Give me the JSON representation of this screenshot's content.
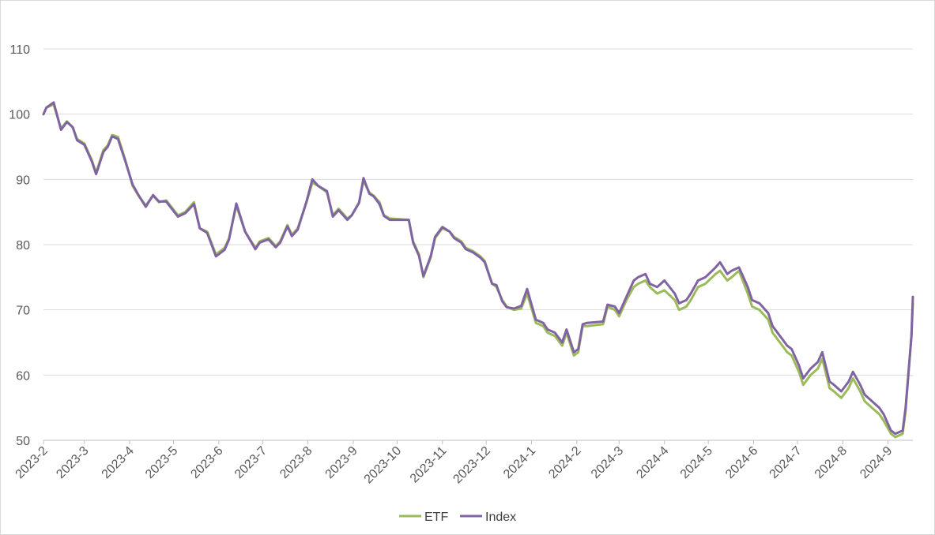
{
  "chart_data": {
    "type": "line",
    "title": "",
    "xlabel": "",
    "ylabel": "",
    "ylim": [
      50,
      110
    ],
    "yticks": [
      50,
      60,
      70,
      80,
      90,
      100,
      110
    ],
    "xlim": [
      "2023-02-01",
      "2024-09-18"
    ],
    "x_tick_labels": [
      "2023-2",
      "2023-3",
      "2023-4",
      "2023-5",
      "2023-6",
      "2023-7",
      "2023-8",
      "2023-9",
      "2023-10",
      "2023-11",
      "2023-12",
      "2024-1",
      "2024-2",
      "2024-3",
      "2024-4",
      "2024-5",
      "2024-6",
      "2024-7",
      "2024-8",
      "2024-9"
    ],
    "grid": "horizontal",
    "legend_position": "bottom",
    "colors": {
      "ETF": "#9bbb59",
      "Index": "#8064a2",
      "grid": "#d9d9d9",
      "axis": "#bfbfbf",
      "text": "#595959"
    },
    "series": [
      {
        "name": "ETF",
        "x": [
          "2023-02-01",
          "2023-02-03",
          "2023-02-08",
          "2023-02-13",
          "2023-02-17",
          "2023-02-21",
          "2023-02-24",
          "2023-03-01",
          "2023-03-06",
          "2023-03-09",
          "2023-03-14",
          "2023-03-17",
          "2023-03-20",
          "2023-03-24",
          "2023-03-29",
          "2023-04-03",
          "2023-04-07",
          "2023-04-12",
          "2023-04-17",
          "2023-04-21",
          "2023-04-26",
          "2023-05-04",
          "2023-05-09",
          "2023-05-15",
          "2023-05-19",
          "2023-05-24",
          "2023-05-30",
          "2023-06-05",
          "2023-06-08",
          "2023-06-13",
          "2023-06-19",
          "2023-06-26",
          "2023-06-29",
          "2023-07-05",
          "2023-07-10",
          "2023-07-13",
          "2023-07-18",
          "2023-07-21",
          "2023-07-25",
          "2023-07-31",
          "2023-08-04",
          "2023-08-08",
          "2023-08-14",
          "2023-08-18",
          "2023-08-22",
          "2023-08-28",
          "2023-08-31",
          "2023-09-05",
          "2023-09-08",
          "2023-09-12",
          "2023-09-15",
          "2023-09-19",
          "2023-09-22",
          "2023-09-26",
          "2023-10-09",
          "2023-10-12",
          "2023-10-16",
          "2023-10-19",
          "2023-10-24",
          "2023-10-27",
          "2023-11-01",
          "2023-11-06",
          "2023-11-09",
          "2023-11-14",
          "2023-11-17",
          "2023-11-22",
          "2023-11-27",
          "2023-11-30",
          "2023-12-05",
          "2023-12-08",
          "2023-12-12",
          "2023-12-15",
          "2023-12-20",
          "2023-12-25",
          "2023-12-29",
          "2024-01-04",
          "2024-01-09",
          "2024-01-12",
          "2024-01-17",
          "2024-01-22",
          "2024-01-25",
          "2024-01-30",
          "2024-02-02",
          "2024-02-05",
          "2024-02-08",
          "2024-02-19",
          "2024-02-22",
          "2024-02-27",
          "2024-03-01",
          "2024-03-06",
          "2024-03-11",
          "2024-03-14",
          "2024-03-19",
          "2024-03-22",
          "2024-03-27",
          "2024-04-01",
          "2024-04-08",
          "2024-04-11",
          "2024-04-16",
          "2024-04-19",
          "2024-04-24",
          "2024-04-29",
          "2024-05-06",
          "2024-05-09",
          "2024-05-14",
          "2024-05-17",
          "2024-05-22",
          "2024-05-28",
          "2024-05-31",
          "2024-06-05",
          "2024-06-11",
          "2024-06-14",
          "2024-06-19",
          "2024-06-24",
          "2024-06-27",
          "2024-07-02",
          "2024-07-05",
          "2024-07-10",
          "2024-07-15",
          "2024-07-18",
          "2024-07-23",
          "2024-07-26",
          "2024-07-31",
          "2024-08-05",
          "2024-08-08",
          "2024-08-13",
          "2024-08-16",
          "2024-08-21",
          "2024-08-26",
          "2024-08-29",
          "2024-09-03",
          "2024-09-06",
          "2024-09-11",
          "2024-09-13",
          "2024-09-17",
          "2024-09-18"
        ],
        "values": [
          100.0,
          101.0,
          101.5,
          97.8,
          98.9,
          98.0,
          96.2,
          95.5,
          93.0,
          91.0,
          94.5,
          95.2,
          96.8,
          96.5,
          93.0,
          89.0,
          87.5,
          86.0,
          87.5,
          86.5,
          86.8,
          84.5,
          85.0,
          86.5,
          82.5,
          82.0,
          78.5,
          79.5,
          81.0,
          86.0,
          82.0,
          79.5,
          80.5,
          81.0,
          79.8,
          80.5,
          83.0,
          81.5,
          82.5,
          86.5,
          89.5,
          89.0,
          88.0,
          84.5,
          85.5,
          84.0,
          84.5,
          86.5,
          89.8,
          88.0,
          87.5,
          86.5,
          84.5,
          84.0,
          83.8,
          80.5,
          78.5,
          75.0,
          78.0,
          81.0,
          82.5,
          82.0,
          81.2,
          80.5,
          79.5,
          79.0,
          78.2,
          77.5,
          74.0,
          73.5,
          71.5,
          70.5,
          70.0,
          70.2,
          72.5,
          68.0,
          67.5,
          66.5,
          66.0,
          64.5,
          66.5,
          63.0,
          63.5,
          67.5,
          67.5,
          67.8,
          70.5,
          70.0,
          69.0,
          71.5,
          73.5,
          74.0,
          74.5,
          73.5,
          72.5,
          73.0,
          71.5,
          70.0,
          70.5,
          71.5,
          73.5,
          74.0,
          75.5,
          76.0,
          74.5,
          75.0,
          76.0,
          72.5,
          70.5,
          70.0,
          68.5,
          66.5,
          65.0,
          63.5,
          63.0,
          60.5,
          58.5,
          60.0,
          61.0,
          62.5,
          58.0,
          57.5,
          56.5,
          58.0,
          59.5,
          57.5,
          56.0,
          55.0,
          54.0,
          53.0,
          51.0,
          50.5,
          51.0,
          54.5,
          66.0,
          71.0
        ]
      },
      {
        "name": "Index",
        "x": [
          "2023-02-01",
          "2023-02-03",
          "2023-02-08",
          "2023-02-13",
          "2023-02-17",
          "2023-02-21",
          "2023-02-24",
          "2023-03-01",
          "2023-03-06",
          "2023-03-09",
          "2023-03-14",
          "2023-03-17",
          "2023-03-20",
          "2023-03-24",
          "2023-03-29",
          "2023-04-03",
          "2023-04-07",
          "2023-04-12",
          "2023-04-17",
          "2023-04-21",
          "2023-04-26",
          "2023-05-04",
          "2023-05-09",
          "2023-05-15",
          "2023-05-19",
          "2023-05-24",
          "2023-05-30",
          "2023-06-05",
          "2023-06-08",
          "2023-06-13",
          "2023-06-19",
          "2023-06-26",
          "2023-06-29",
          "2023-07-05",
          "2023-07-10",
          "2023-07-13",
          "2023-07-18",
          "2023-07-21",
          "2023-07-25",
          "2023-07-31",
          "2023-08-04",
          "2023-08-08",
          "2023-08-14",
          "2023-08-18",
          "2023-08-22",
          "2023-08-28",
          "2023-08-31",
          "2023-09-05",
          "2023-09-08",
          "2023-09-12",
          "2023-09-15",
          "2023-09-19",
          "2023-09-22",
          "2023-09-26",
          "2023-10-09",
          "2023-10-12",
          "2023-10-16",
          "2023-10-19",
          "2023-10-24",
          "2023-10-27",
          "2023-11-01",
          "2023-11-06",
          "2023-11-09",
          "2023-11-14",
          "2023-11-17",
          "2023-11-22",
          "2023-11-27",
          "2023-11-30",
          "2023-12-05",
          "2023-12-08",
          "2023-12-12",
          "2023-12-15",
          "2023-12-20",
          "2023-12-25",
          "2023-12-29",
          "2024-01-04",
          "2024-01-09",
          "2024-01-12",
          "2024-01-17",
          "2024-01-22",
          "2024-01-25",
          "2024-01-30",
          "2024-02-02",
          "2024-02-05",
          "2024-02-08",
          "2024-02-19",
          "2024-02-22",
          "2024-02-27",
          "2024-03-01",
          "2024-03-06",
          "2024-03-11",
          "2024-03-14",
          "2024-03-19",
          "2024-03-22",
          "2024-03-27",
          "2024-04-01",
          "2024-04-08",
          "2024-04-11",
          "2024-04-16",
          "2024-04-19",
          "2024-04-24",
          "2024-04-29",
          "2024-05-06",
          "2024-05-09",
          "2024-05-14",
          "2024-05-17",
          "2024-05-22",
          "2024-05-28",
          "2024-05-31",
          "2024-06-05",
          "2024-06-11",
          "2024-06-14",
          "2024-06-19",
          "2024-06-24",
          "2024-06-27",
          "2024-07-02",
          "2024-07-05",
          "2024-07-10",
          "2024-07-15",
          "2024-07-18",
          "2024-07-23",
          "2024-07-26",
          "2024-07-31",
          "2024-08-05",
          "2024-08-08",
          "2024-08-13",
          "2024-08-16",
          "2024-08-21",
          "2024-08-26",
          "2024-08-29",
          "2024-09-03",
          "2024-09-06",
          "2024-09-11",
          "2024-09-13",
          "2024-09-17",
          "2024-09-18"
        ],
        "values": [
          100.0,
          101.0,
          101.8,
          97.6,
          98.8,
          98.0,
          96.0,
          95.3,
          92.8,
          90.8,
          94.2,
          95.0,
          96.6,
          96.2,
          92.8,
          89.2,
          87.6,
          85.8,
          87.6,
          86.6,
          86.6,
          84.3,
          84.8,
          86.2,
          82.5,
          81.8,
          78.2,
          79.2,
          80.8,
          86.3,
          82.0,
          79.3,
          80.3,
          80.8,
          79.6,
          80.3,
          82.8,
          81.3,
          82.3,
          86.6,
          90.0,
          89.0,
          88.2,
          84.3,
          85.3,
          83.8,
          84.5,
          86.4,
          90.2,
          87.8,
          87.4,
          86.2,
          84.4,
          83.8,
          83.8,
          80.3,
          78.3,
          75.2,
          78.2,
          81.2,
          82.7,
          82.0,
          81.0,
          80.3,
          79.3,
          78.8,
          78.0,
          77.3,
          74.0,
          73.8,
          71.3,
          70.4,
          70.2,
          70.6,
          73.2,
          68.5,
          68.0,
          67.0,
          66.5,
          65.0,
          67.0,
          63.5,
          64.0,
          67.8,
          68.0,
          68.2,
          70.8,
          70.5,
          69.5,
          72.0,
          74.5,
          75.0,
          75.5,
          74.0,
          73.5,
          74.5,
          72.5,
          71.0,
          71.5,
          72.5,
          74.5,
          75.0,
          76.5,
          77.3,
          75.5,
          76.0,
          76.5,
          73.5,
          71.5,
          71.0,
          69.5,
          67.5,
          66.0,
          64.5,
          64.0,
          61.5,
          59.5,
          61.0,
          62.0,
          63.5,
          59.0,
          58.5,
          57.5,
          59.0,
          60.5,
          58.5,
          57.0,
          56.0,
          55.0,
          54.0,
          51.5,
          51.0,
          51.5,
          55.0,
          66.0,
          72.0
        ]
      }
    ]
  }
}
